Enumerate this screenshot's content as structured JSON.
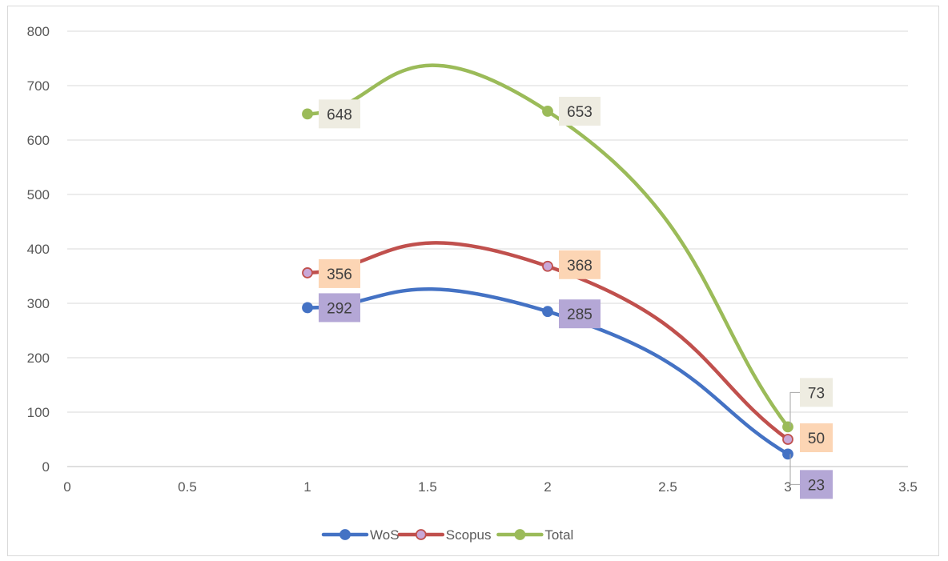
{
  "chart_data": {
    "type": "scatter",
    "title": "",
    "xlabel": "",
    "ylabel": "",
    "xlim": [
      0,
      3.5
    ],
    "ylim": [
      0,
      800
    ],
    "x_ticks": [
      "0",
      "0.5",
      "1",
      "1.5",
      "2",
      "2.5",
      "3",
      "3.5"
    ],
    "y_ticks": [
      "0",
      "100",
      "200",
      "300",
      "400",
      "500",
      "600",
      "700",
      "800"
    ],
    "grid": "horizontal",
    "legend_position": "bottom",
    "smooth_lines": true,
    "series": [
      {
        "name": "WoS",
        "x": [
          1,
          2,
          3
        ],
        "y": [
          292,
          285,
          23
        ],
        "labels": [
          "292",
          "285",
          "23"
        ],
        "color": "#4472c4",
        "marker_fill": "#4472c4",
        "label_bg": "#b4a7d6"
      },
      {
        "name": "Scopus",
        "x": [
          1,
          2,
          3
        ],
        "y": [
          356,
          368,
          50
        ],
        "labels": [
          "356",
          "368",
          "50"
        ],
        "color": "#c0504d",
        "marker_fill": "#c9a8d8",
        "label_bg": "#fcd5b4"
      },
      {
        "name": "Total",
        "x": [
          1,
          2,
          3
        ],
        "y": [
          648,
          653,
          73
        ],
        "labels": [
          "648",
          "653",
          "73"
        ],
        "color": "#9bbb59",
        "marker_fill": "#9bbb59",
        "label_bg": "#eeece1"
      }
    ]
  }
}
